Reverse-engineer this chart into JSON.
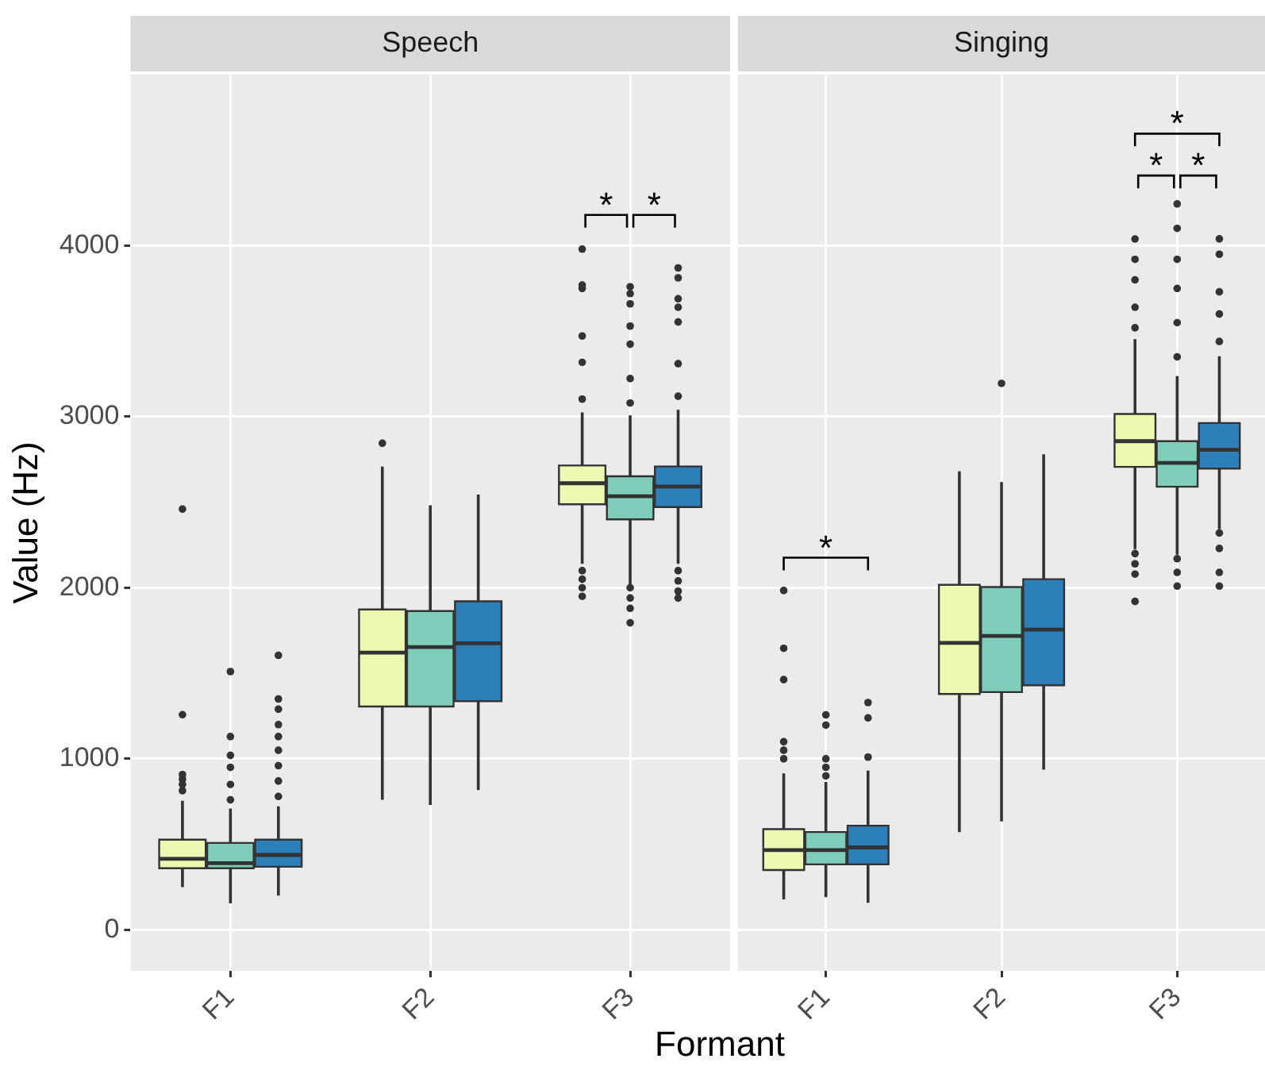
{
  "chart_data": [
    {
      "type": "box",
      "title": "Speech",
      "ylabel": "Value (Hz)",
      "xlabel": "Formant",
      "categories": [
        "F1",
        "F2",
        "F3"
      ],
      "ylim": [
        -240,
        5000
      ],
      "yticks": [
        0,
        1000,
        2000,
        3000,
        4000
      ],
      "grid": true,
      "series": [
        {
          "color": "#edf8b1",
          "boxes": [
            {
              "low": 250,
              "q1": 360,
              "median": 415,
              "q3": 527,
              "high": 755,
              "outliers": [
                814,
                850,
                880,
                908,
                1258,
                2460
              ]
            },
            {
              "low": 760,
              "q1": 1306,
              "median": 1621,
              "q3": 1873,
              "high": 2709,
              "outliers": [
                2845
              ]
            },
            {
              "low": 2140,
              "q1": 2488,
              "median": 2611,
              "q3": 2715,
              "high": 3025,
              "outliers": [
                1950,
                2000,
                2050,
                2100,
                3103,
                3318,
                3472,
                3750,
                3770,
                3980
              ]
            }
          ]
        },
        {
          "color": "#7fcdbb",
          "boxes": [
            {
              "low": 155,
              "q1": 360,
              "median": 390,
              "q3": 508,
              "high": 710,
              "outliers": [
                760,
                850,
                950,
                1020,
                1130,
                1510
              ]
            },
            {
              "low": 730,
              "q1": 1306,
              "median": 1653,
              "q3": 1864,
              "high": 2482
            },
            {
              "low": 2015,
              "q1": 2400,
              "median": 2535,
              "q3": 2652,
              "high": 3008,
              "outliers": [
                1795,
                1880,
                1940,
                2000,
                3080,
                3223,
                3424,
                3530,
                3660,
                3720,
                3760
              ]
            }
          ]
        },
        {
          "color": "#2c7fb8",
          "boxes": [
            {
              "low": 200,
              "q1": 369,
              "median": 438,
              "q3": 527,
              "high": 722,
              "outliers": [
                780,
                870,
                960,
                1050,
                1130,
                1200,
                1290,
                1350,
                1605
              ]
            },
            {
              "low": 817,
              "q1": 1337,
              "median": 1675,
              "q3": 1921,
              "high": 2545
            },
            {
              "low": 2140,
              "q1": 2472,
              "median": 2592,
              "q3": 2709,
              "high": 3040,
              "outliers": [
                1940,
                1980,
                2040,
                2100,
                3120,
                3310,
                3554,
                3640,
                3690,
                3812,
                3870
              ]
            }
          ]
        }
      ],
      "annotations": [
        "*",
        "*"
      ]
    },
    {
      "type": "box",
      "title": "Singing",
      "categories": [
        "F1",
        "F2",
        "F3"
      ],
      "ylim": [
        -240,
        5000
      ],
      "yticks": [
        0,
        1000,
        2000,
        3000,
        4000
      ],
      "grid": true,
      "tick_labels": "x",
      "series": [
        {
          "color": "#edf8b1",
          "boxes": [
            {
              "low": 178,
              "q1": 350,
              "median": 466,
              "q3": 589,
              "high": 915,
              "outliers": [
                1000,
                1050,
                1100,
                1463,
                1646,
                1984
              ]
            },
            {
              "low": 572,
              "q1": 1379,
              "median": 1678,
              "q3": 2017,
              "high": 2681
            },
            {
              "low": 2226,
              "q1": 2707,
              "median": 2857,
              "q3": 3016,
              "high": 3453,
              "outliers": [
                1920,
                2080,
                2140,
                2200,
                3520,
                3640,
                3800,
                3920,
                4039
              ]
            }
          ]
        },
        {
          "color": "#7fcdbb",
          "boxes": [
            {
              "low": 191,
              "q1": 383,
              "median": 466,
              "q3": 572,
              "high": 865,
              "outliers": [
                900,
                950,
                1000,
                1197,
                1257
              ]
            },
            {
              "low": 634,
              "q1": 1390,
              "median": 1718,
              "q3": 2004,
              "high": 2618,
              "outliers": [
                3195
              ]
            },
            {
              "low": 2193,
              "q1": 2591,
              "median": 2730,
              "q3": 2857,
              "high": 3238,
              "outliers": [
                2010,
                2090,
                2170,
                3350,
                3550,
                3750,
                3920,
                4101,
                4244
              ]
            }
          ]
        },
        {
          "color": "#2c7fb8",
          "boxes": [
            {
              "low": 158,
              "q1": 383,
              "median": 482,
              "q3": 609,
              "high": 931,
              "outliers": [
                1010,
                1239,
                1329
              ]
            },
            {
              "low": 937,
              "q1": 1430,
              "median": 1755,
              "q3": 2050,
              "high": 2780
            },
            {
              "low": 2342,
              "q1": 2697,
              "median": 2807,
              "q3": 2963,
              "high": 3354,
              "outliers": [
                2010,
                2090,
                2230,
                2320,
                3440,
                3600,
                3730,
                3950,
                4040
              ]
            }
          ]
        }
      ],
      "annotations": [
        "*",
        "*",
        "*",
        "*"
      ]
    }
  ]
}
